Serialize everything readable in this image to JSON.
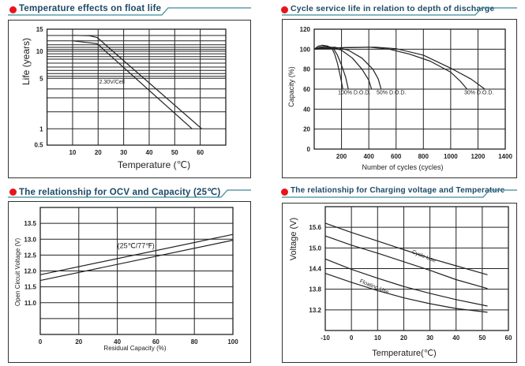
{
  "colors": {
    "dot": "#e8141b",
    "title": "#1d4a66",
    "rule": "#3a8a9a",
    "grid": "#222222",
    "curve": "#222222"
  },
  "chart_data": [
    {
      "type": "line",
      "title": "Temperature effects on float life",
      "xlabel": "Temperature (℃)",
      "ylabel": "Life (years)",
      "xlim": [
        0,
        70
      ],
      "ylim": [
        0.5,
        15
      ],
      "yscale": "log",
      "grid": true,
      "x_ticks": [
        10,
        20,
        30,
        40,
        50,
        60
      ],
      "y_ticks": [
        15,
        10,
        5,
        1,
        0.5
      ],
      "annotations": [
        {
          "text": "2.30V/Cell",
          "x": 20.4,
          "y": 4.2
        }
      ],
      "series": [
        {
          "name": "upper",
          "points": [
            [
              10.2,
              13.4
            ],
            [
              16.6,
              13.3
            ],
            [
              19.5,
              12.9
            ],
            [
              20.6,
              12.4
            ],
            [
              22.6,
              11.4
            ],
            [
              60.6,
              1
            ]
          ]
        },
        {
          "name": "lower",
          "points": [
            [
              10.2,
              12.1
            ],
            [
              19.5,
              11.5
            ],
            [
              20.8,
              11.0
            ],
            [
              21.7,
              10.5
            ],
            [
              56.8,
              1
            ]
          ]
        }
      ]
    },
    {
      "type": "line",
      "title": "Cycle service life in relation to depth of discharge",
      "xlabel": "Number of cycles (cycles)",
      "ylabel": "Capacity (%)",
      "xlim": [
        0,
        1400
      ],
      "ylim": [
        0,
        120
      ],
      "grid": true,
      "x_ticks": [
        200,
        400,
        600,
        800,
        1000,
        1200,
        1400
      ],
      "y_ticks": [
        0,
        20,
        40,
        60,
        80,
        100,
        120
      ],
      "annotations": [
        {
          "text": "100% D.O.D.",
          "x": 174,
          "y": 55
        },
        {
          "text": "50% D.O.D.",
          "x": 457,
          "y": 55
        },
        {
          "text": "30% D.O.D.",
          "x": 1099,
          "y": 55
        }
      ],
      "series": [
        {
          "name": "100% D.O.D. a",
          "points": [
            [
              0,
              100
            ],
            [
              30,
              103
            ],
            [
              60,
              104
            ],
            [
              100,
              103
            ],
            [
              130,
              101
            ],
            [
              150,
              95
            ],
            [
              170,
              86
            ],
            [
              190,
              74
            ],
            [
              200,
              67
            ],
            [
              210,
              60
            ]
          ]
        },
        {
          "name": "100% D.O.D. b",
          "points": [
            [
              0,
              100
            ],
            [
              40,
              102
            ],
            [
              80,
              103
            ],
            [
              120,
              102
            ],
            [
              140,
              101
            ],
            [
              170,
              94
            ],
            [
              200,
              84
            ],
            [
              230,
              72
            ],
            [
              250,
              60
            ]
          ]
        },
        {
          "name": "50% D.O.D. a",
          "points": [
            [
              0,
              100
            ],
            [
              60,
              101.5
            ],
            [
              120,
              102
            ],
            [
              200,
              99
            ],
            [
              280,
              91
            ],
            [
              350,
              80
            ],
            [
              400,
              69
            ],
            [
              420,
              60
            ]
          ]
        },
        {
          "name": "50% D.O.D. b",
          "points": [
            [
              0,
              100
            ],
            [
              80,
              101.5
            ],
            [
              150,
              102
            ],
            [
              250,
              99
            ],
            [
              350,
              91
            ],
            [
              430,
              80
            ],
            [
              470,
              70
            ],
            [
              490,
              60
            ]
          ]
        },
        {
          "name": "30% D.O.D. a",
          "points": [
            [
              0,
              100
            ],
            [
              200,
              101.5
            ],
            [
              400,
              102
            ],
            [
              550,
              100
            ],
            [
              700,
              95
            ],
            [
              850,
              88
            ],
            [
              1000,
              77
            ],
            [
              1070,
              68
            ],
            [
              1120,
              60
            ]
          ]
        },
        {
          "name": "30% D.O.D. b",
          "points": [
            [
              0,
              100
            ],
            [
              250,
              101.5
            ],
            [
              450,
              102
            ],
            [
              600,
              100.5
            ],
            [
              800,
              94
            ],
            [
              1000,
              81
            ],
            [
              1150,
              70
            ],
            [
              1250,
              60
            ]
          ]
        }
      ]
    },
    {
      "type": "line",
      "title": "The relationship  for OCV and Capacity (25℃)",
      "xlabel": "Residual Capacity (%)",
      "ylabel": "Open Circuit Voltage (V)",
      "xlim": [
        0,
        100
      ],
      "ylim": [
        10,
        14
      ],
      "grid": true,
      "x_ticks": [
        0,
        20,
        40,
        60,
        80,
        100
      ],
      "y_ticks": [
        "11.0",
        "11.5",
        "12.0",
        "12.5",
        "13.0",
        "13.5"
      ],
      "annotations": [
        {
          "text": "(25℃/77℉)",
          "x": 40,
          "y": 12.72
        }
      ],
      "series": [
        {
          "name": "upper",
          "points": [
            [
              0,
              11.88
            ],
            [
              100,
              13.15
            ]
          ]
        },
        {
          "name": "lower",
          "points": [
            [
              0,
              11.7
            ],
            [
              100,
              12.97
            ]
          ]
        }
      ]
    },
    {
      "type": "line",
      "title": "The relationship for Charging voltage and Temperature",
      "xlabel": "Temperature(℃)",
      "ylabel": "Voltage (V)",
      "xlim": [
        -10,
        60
      ],
      "ylim": [
        12.6,
        16.2
      ],
      "grid": true,
      "x_ticks": [
        -10,
        0,
        10,
        20,
        30,
        40,
        50,
        60
      ],
      "y_ticks": [
        "13.2",
        "13.8",
        "14.4",
        "15.0",
        "15.6"
      ],
      "annotations": [
        {
          "text": "Cycle Use",
          "x": 23,
          "y": 14.85,
          "rotate": 22
        },
        {
          "text": "Floating Use",
          "x": 3,
          "y": 14.0,
          "rotate": 22
        }
      ],
      "series": [
        {
          "name": "Cycle Use upper",
          "points": [
            [
              -10,
              15.72
            ],
            [
              0,
              15.45
            ],
            [
              10,
              15.2
            ],
            [
              20,
              14.95
            ],
            [
              30,
              14.7
            ],
            [
              40,
              14.48
            ],
            [
              52,
              14.22
            ]
          ]
        },
        {
          "name": "Cycle Use lower",
          "points": [
            [
              -10,
              15.35
            ],
            [
              0,
              15.08
            ],
            [
              10,
              14.85
            ],
            [
              20,
              14.6
            ],
            [
              30,
              14.35
            ],
            [
              40,
              14.08
            ],
            [
              52,
              13.82
            ]
          ]
        },
        {
          "name": "Floating Use upper",
          "points": [
            [
              -10,
              14.68
            ],
            [
              0,
              14.38
            ],
            [
              10,
              14.12
            ],
            [
              20,
              13.88
            ],
            [
              30,
              13.68
            ],
            [
              40,
              13.5
            ],
            [
              52,
              13.31
            ]
          ]
        },
        {
          "name": "Floating Use lower",
          "points": [
            [
              -10,
              14.26
            ],
            [
              0,
              14.0
            ],
            [
              10,
              13.76
            ],
            [
              20,
              13.55
            ],
            [
              30,
              13.38
            ],
            [
              40,
              13.24
            ],
            [
              52,
              13.13
            ]
          ]
        }
      ]
    }
  ]
}
